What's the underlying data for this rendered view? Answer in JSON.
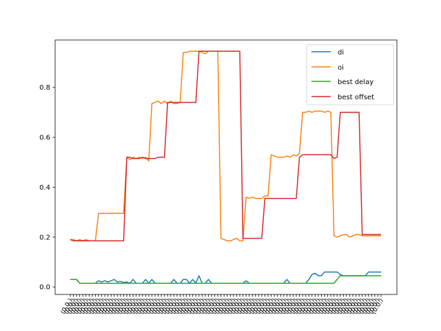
{
  "chart_data": {
    "type": "line",
    "title": "",
    "xlabel": "",
    "ylabel": "",
    "ylim": [
      -0.03,
      0.99
    ],
    "yticks": [
      0.0,
      0.2,
      0.4,
      0.6,
      0.8
    ],
    "ytick_labels": [
      "0.0",
      "0.2",
      "0.4",
      "0.6",
      "0.8"
    ],
    "grid": false,
    "legend_position": "top-right",
    "xtick_label_text": "(0.0,)",
    "n_points": 100,
    "series": [
      {
        "name": "di",
        "color": "#1f77b4",
        "values": [
          0.03,
          0.03,
          0.03,
          0.015,
          0.015,
          0.015,
          0.015,
          0.015,
          0.015,
          0.025,
          0.02,
          0.025,
          0.02,
          0.025,
          0.03,
          0.02,
          0.022,
          0.018,
          0.02,
          0.015,
          0.03,
          0.015,
          0.015,
          0.015,
          0.03,
          0.015,
          0.03,
          0.015,
          0.015,
          0.015,
          0.015,
          0.015,
          0.015,
          0.03,
          0.015,
          0.015,
          0.03,
          0.03,
          0.015,
          0.03,
          0.015,
          0.045,
          0.015,
          0.015,
          0.03,
          0.015,
          0.015,
          0.015,
          0.015,
          0.015,
          0.015,
          0.015,
          0.015,
          0.015,
          0.015,
          0.015,
          0.025,
          0.015,
          0.015,
          0.015,
          0.015,
          0.015,
          0.015,
          0.015,
          0.015,
          0.015,
          0.015,
          0.015,
          0.015,
          0.03,
          0.015,
          0.015,
          0.015,
          0.015,
          0.015,
          0.015,
          0.03,
          0.05,
          0.055,
          0.045,
          0.045,
          0.06,
          0.06,
          0.06,
          0.06,
          0.06,
          0.05,
          0.045,
          0.045,
          0.045,
          0.045,
          0.045,
          0.045,
          0.045,
          0.045,
          0.06,
          0.06,
          0.06,
          0.06,
          0.06
        ]
      },
      {
        "name": "oi",
        "color": "#ff7f0e",
        "values": [
          0.19,
          0.19,
          0.185,
          0.19,
          0.185,
          0.19,
          0.185,
          0.185,
          0.185,
          0.295,
          0.295,
          0.295,
          0.295,
          0.295,
          0.295,
          0.295,
          0.295,
          0.295,
          0.52,
          0.51,
          0.52,
          0.515,
          0.52,
          0.515,
          0.52,
          0.505,
          0.735,
          0.74,
          0.745,
          0.735,
          0.745,
          0.735,
          0.745,
          0.735,
          0.735,
          0.74,
          0.94,
          0.94,
          0.945,
          0.945,
          0.945,
          0.945,
          0.94,
          0.935,
          0.945,
          0.945,
          0.945,
          0.945,
          0.195,
          0.19,
          0.185,
          0.185,
          0.19,
          0.195,
          0.185,
          0.185,
          0.36,
          0.355,
          0.36,
          0.355,
          0.355,
          0.355,
          0.365,
          0.365,
          0.53,
          0.525,
          0.52,
          0.52,
          0.52,
          0.525,
          0.52,
          0.53,
          0.525,
          0.535,
          0.7,
          0.7,
          0.705,
          0.7,
          0.705,
          0.705,
          0.705,
          0.7,
          0.705,
          0.7,
          0.205,
          0.2,
          0.205,
          0.21,
          0.21,
          0.2,
          0.205,
          0.21,
          0.21,
          0.205,
          0.205,
          0.205,
          0.205,
          0.205,
          0.205,
          0.205
        ]
      },
      {
        "name": "best delay",
        "color": "#2ca02c",
        "values": [
          0.03,
          0.03,
          0.03,
          0.015,
          0.015,
          0.015,
          0.015,
          0.015,
          0.015,
          0.015,
          0.015,
          0.015,
          0.015,
          0.015,
          0.015,
          0.015,
          0.015,
          0.015,
          0.015,
          0.015,
          0.015,
          0.015,
          0.015,
          0.015,
          0.015,
          0.015,
          0.015,
          0.015,
          0.015,
          0.015,
          0.015,
          0.015,
          0.015,
          0.015,
          0.015,
          0.015,
          0.015,
          0.015,
          0.015,
          0.015,
          0.015,
          0.015,
          0.015,
          0.015,
          0.015,
          0.015,
          0.015,
          0.015,
          0.015,
          0.015,
          0.015,
          0.015,
          0.015,
          0.015,
          0.015,
          0.015,
          0.015,
          0.015,
          0.015,
          0.015,
          0.015,
          0.015,
          0.015,
          0.015,
          0.015,
          0.015,
          0.015,
          0.015,
          0.015,
          0.015,
          0.015,
          0.015,
          0.015,
          0.015,
          0.015,
          0.015,
          0.015,
          0.015,
          0.015,
          0.015,
          0.015,
          0.015,
          0.015,
          0.015,
          0.015,
          0.03,
          0.045,
          0.045,
          0.045,
          0.045,
          0.045,
          0.045,
          0.045,
          0.045,
          0.045,
          0.045,
          0.045,
          0.045,
          0.045,
          0.045
        ]
      },
      {
        "name": "best offset",
        "color": "#d62728",
        "values": [
          0.19,
          0.185,
          0.185,
          0.185,
          0.185,
          0.185,
          0.185,
          0.185,
          0.185,
          0.185,
          0.185,
          0.185,
          0.185,
          0.185,
          0.185,
          0.185,
          0.185,
          0.185,
          0.52,
          0.52,
          0.515,
          0.515,
          0.515,
          0.52,
          0.515,
          0.515,
          0.515,
          0.515,
          0.52,
          0.52,
          0.52,
          0.74,
          0.74,
          0.74,
          0.74,
          0.74,
          0.74,
          0.74,
          0.74,
          0.74,
          0.74,
          0.945,
          0.945,
          0.945,
          0.945,
          0.945,
          0.945,
          0.945,
          0.945,
          0.945,
          0.945,
          0.945,
          0.945,
          0.945,
          0.945,
          0.195,
          0.195,
          0.195,
          0.195,
          0.195,
          0.195,
          0.195,
          0.355,
          0.355,
          0.355,
          0.355,
          0.355,
          0.355,
          0.355,
          0.355,
          0.355,
          0.355,
          0.355,
          0.52,
          0.53,
          0.53,
          0.53,
          0.53,
          0.53,
          0.53,
          0.53,
          0.53,
          0.53,
          0.53,
          0.515,
          0.52,
          0.7,
          0.7,
          0.7,
          0.7,
          0.7,
          0.7,
          0.7,
          0.21,
          0.21,
          0.21,
          0.21,
          0.21,
          0.21,
          0.21
        ]
      }
    ]
  }
}
